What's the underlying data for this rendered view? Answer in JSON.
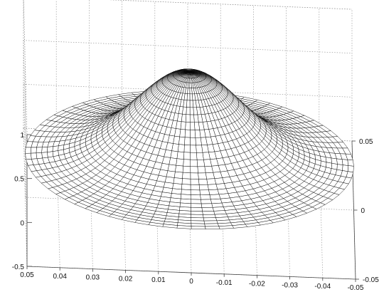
{
  "chart_data": {
    "type": "surface",
    "mesh_color": "#000000",
    "grid": true,
    "grid_style": "dotted",
    "x_ticks": [
      "0.05",
      "0.04",
      "0.03",
      "0.02",
      "0.01",
      "0",
      "-0.01",
      "-0.02",
      "-0.03",
      "-0.04",
      "-0.05"
    ],
    "y_ticks": [
      "0.05",
      "0",
      "-0.05"
    ],
    "z_ticks": [
      "-0.5",
      "0",
      "0.5",
      "1"
    ],
    "xlim": [
      -0.05,
      0.05
    ],
    "ylim": [
      -0.05,
      0.05
    ],
    "zlim": [
      -0.5,
      1
    ],
    "surface": {
      "domain": "disk",
      "radius": 0.05,
      "peak_height": 1.0,
      "edge_height": 0.0,
      "radial_rings": 30,
      "angular_segments": 72
    }
  }
}
